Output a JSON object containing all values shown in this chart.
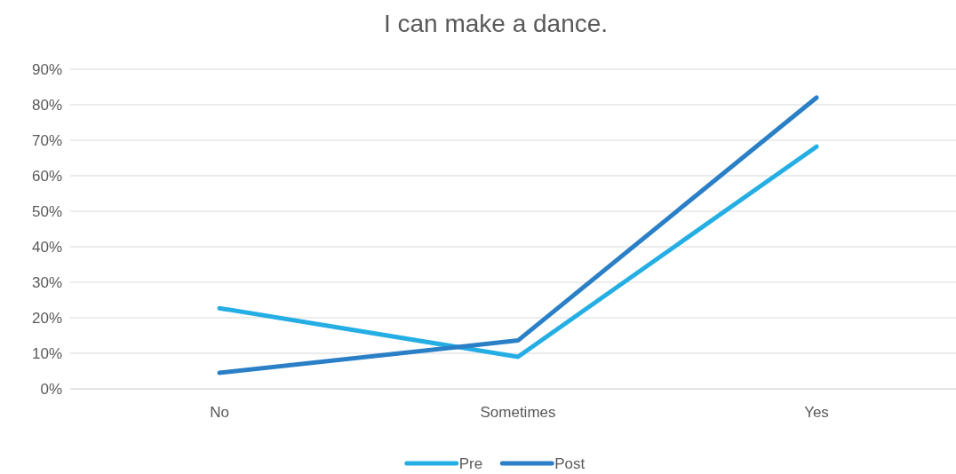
{
  "chart_data": {
    "type": "line",
    "title": "I can make a dance.",
    "categories": [
      "No",
      "Sometimes",
      "Yes"
    ],
    "series": [
      {
        "name": "Pre",
        "color": "#25aee4",
        "values": [
          22.7,
          9,
          68.2
        ]
      },
      {
        "name": "Post",
        "color": "#2a7fc6",
        "values": [
          4.5,
          13.6,
          82
        ]
      }
    ],
    "ylim": [
      0,
      90
    ],
    "yticks": [
      {
        "value": 0,
        "label": "0%"
      },
      {
        "value": 10,
        "label": "10%"
      },
      {
        "value": 20,
        "label": "20%"
      },
      {
        "value": 30,
        "label": "30%"
      },
      {
        "value": 40,
        "label": "40%"
      },
      {
        "value": 50,
        "label": "50%"
      },
      {
        "value": 60,
        "label": "60%"
      },
      {
        "value": 70,
        "label": "70%"
      },
      {
        "value": 80,
        "label": "80%"
      },
      {
        "value": 90,
        "label": "90%"
      }
    ],
    "grid": "y",
    "legend": "bottom",
    "marker": "none",
    "line_style": "solid"
  }
}
